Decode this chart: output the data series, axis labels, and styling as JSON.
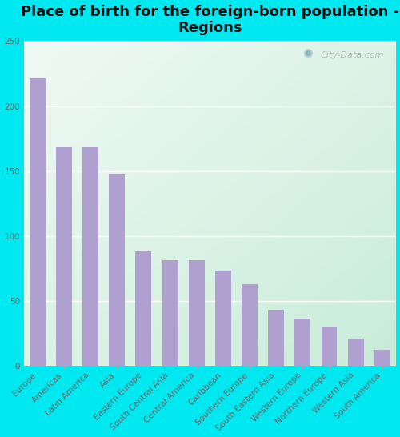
{
  "title": "Place of birth for the foreign-born population -\nRegions",
  "categories": [
    "Europe",
    "Americas",
    "Latin America",
    "Asia",
    "Eastern Europe",
    "South Central Asia",
    "Central America",
    "Caribbean",
    "Southern Europe",
    "South Eastern Asia",
    "Western Europe",
    "Northern Europe",
    "Western Asia",
    "South America"
  ],
  "values": [
    221,
    168,
    168,
    147,
    88,
    81,
    81,
    73,
    63,
    43,
    36,
    30,
    21,
    12
  ],
  "bar_color": "#b0a0d0",
  "background_outer": "#00e8f0",
  "background_grad_topleft": "#f0faf5",
  "background_grad_bottomright": "#c8ecd8",
  "ylabel_color": "#666666",
  "title_color": "#111111",
  "ylim": [
    0,
    250
  ],
  "yticks": [
    0,
    50,
    100,
    150,
    200,
    250
  ],
  "title_fontsize": 13,
  "tick_fontsize": 7.5,
  "watermark_text": "City-Data.com"
}
